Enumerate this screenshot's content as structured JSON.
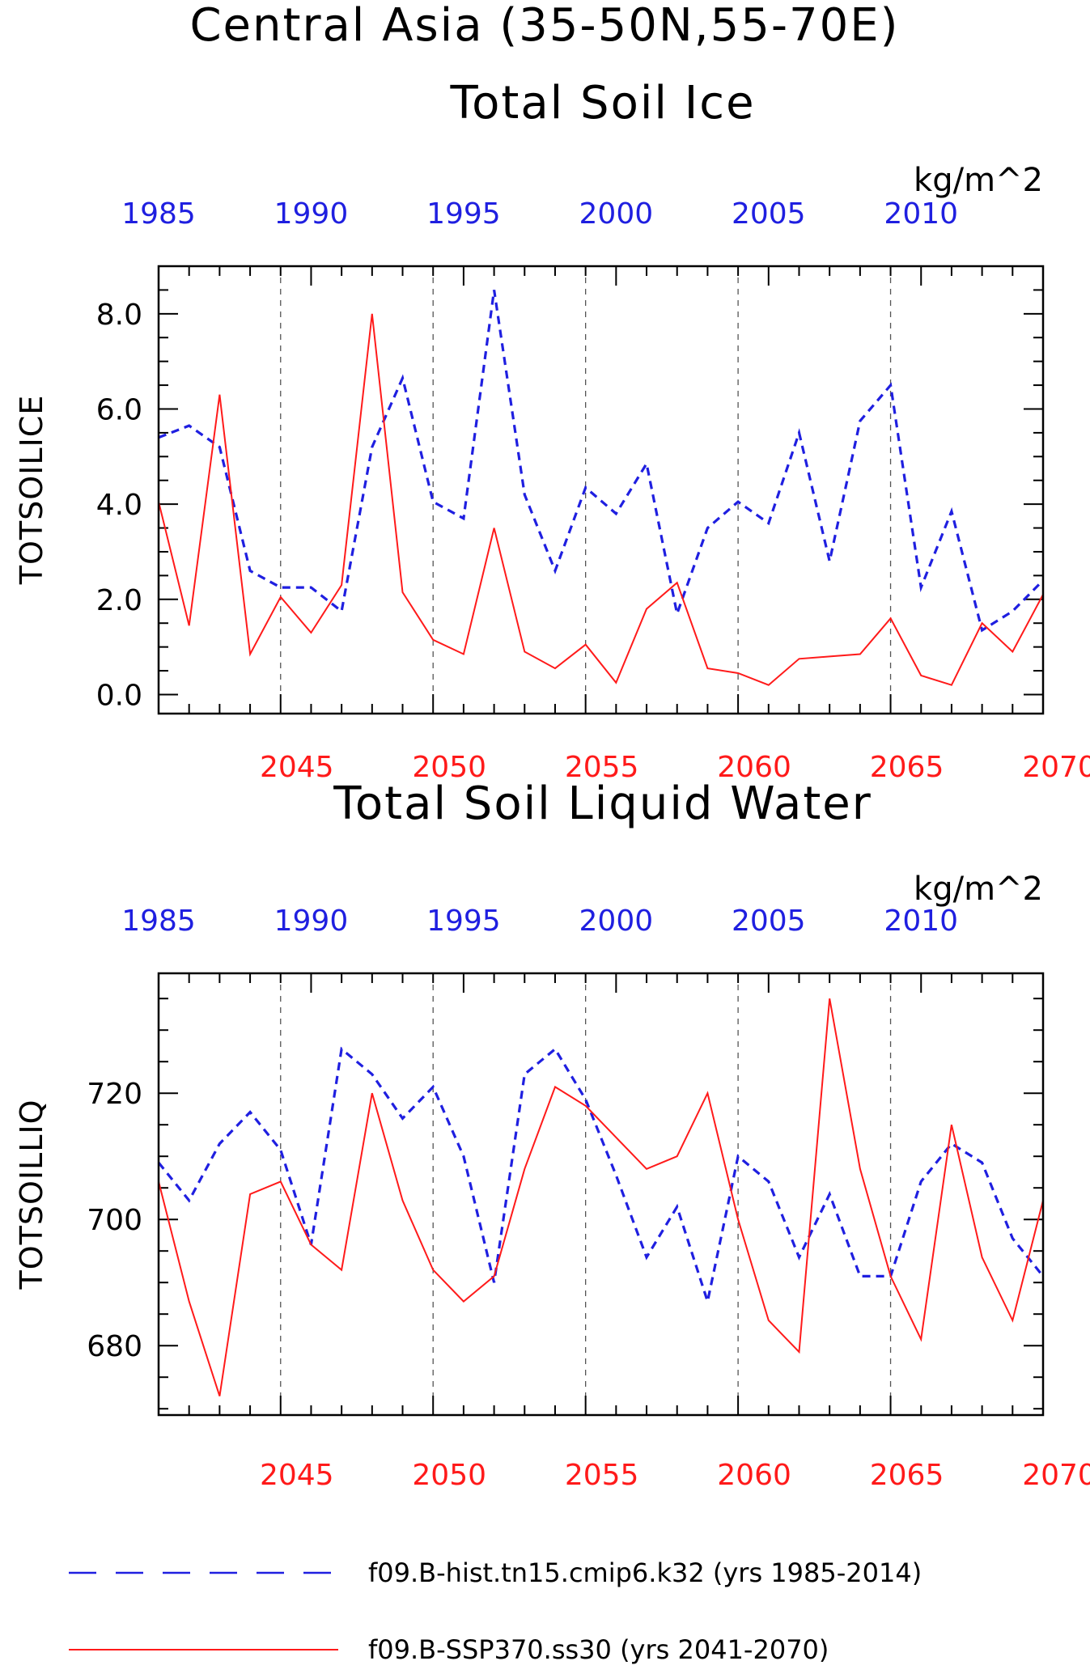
{
  "colors": {
    "hist": "#1f1fe0",
    "ssp": "#ff1a1a",
    "axis": "#000000"
  },
  "titles": {
    "main_line1": "Central Asia (35-50N,55-70E)",
    "main_line2": "Total Soil Ice",
    "panel2": "Total Soil Liquid Water"
  },
  "legend": {
    "hist_label": "f09.B-hist.tn15.cmip6.k32 (yrs 1985-2014)",
    "ssp_label": "f09.B-SSP370.ss30 (yrs 2041-2070)"
  },
  "chart_data": [
    {
      "type": "line",
      "ylabel": "TOTSOILICE",
      "units": "kg/m^2",
      "ylim": [
        -0.4,
        9.0
      ],
      "yticks": [
        "0.0",
        "2.0",
        "4.0",
        "6.0",
        "8.0"
      ],
      "bottom_axis": {
        "range": [
          2041,
          2070
        ],
        "ticks": [
          "2045",
          "2050",
          "2055",
          "2060",
          "2065",
          "2070"
        ]
      },
      "top_axis": {
        "range": [
          1985,
          2014
        ],
        "ticks": [
          "1985",
          "1990",
          "1995",
          "2000",
          "2005",
          "2010"
        ]
      },
      "grid": "dashed vertical lines at 2045, 2050, 2055, 2060, 2065",
      "series": [
        {
          "name": "f09.B-hist.tn15.cmip6.k32 (yrs 1985-2014)",
          "style": "dashed",
          "x": [
            1985,
            1986,
            1987,
            1988,
            1989,
            1990,
            1991,
            1992,
            1993,
            1994,
            1995,
            1996,
            1997,
            1998,
            1999,
            2000,
            2001,
            2002,
            2003,
            2004,
            2005,
            2006,
            2007,
            2008,
            2009,
            2010,
            2011,
            2012,
            2013,
            2014
          ],
          "values": [
            5.4,
            5.65,
            5.2,
            2.6,
            2.25,
            2.25,
            1.75,
            5.2,
            6.65,
            4.05,
            3.7,
            8.5,
            4.2,
            2.6,
            4.35,
            3.8,
            4.85,
            1.7,
            3.5,
            4.05,
            3.6,
            5.5,
            2.8,
            5.75,
            6.5,
            2.25,
            3.85,
            1.35,
            1.75,
            2.4
          ]
        },
        {
          "name": "f09.B-SSP370.ss30 (yrs 2041-2070)",
          "style": "solid",
          "x": [
            2041,
            2042,
            2043,
            2044,
            2045,
            2046,
            2047,
            2048,
            2049,
            2050,
            2051,
            2052,
            2053,
            2054,
            2055,
            2056,
            2057,
            2058,
            2059,
            2060,
            2061,
            2062,
            2063,
            2064,
            2065,
            2066,
            2067,
            2068,
            2069,
            2070
          ],
          "values": [
            4.05,
            1.45,
            6.3,
            0.85,
            2.05,
            1.3,
            2.3,
            8.0,
            2.15,
            1.15,
            0.85,
            3.5,
            0.9,
            0.55,
            1.05,
            0.25,
            1.8,
            2.35,
            0.55,
            0.45,
            0.2,
            0.75,
            0.8,
            0.85,
            1.6,
            0.4,
            0.2,
            1.5,
            0.9,
            2.1
          ]
        }
      ]
    },
    {
      "type": "line",
      "ylabel": "TOTSOILLIQ",
      "units": "kg/m^2",
      "ylim": [
        669,
        739
      ],
      "yticks": [
        "680",
        "700",
        "720"
      ],
      "bottom_axis": {
        "range": [
          2041,
          2070
        ],
        "ticks": [
          "2045",
          "2050",
          "2055",
          "2060",
          "2065",
          "2070"
        ]
      },
      "top_axis": {
        "range": [
          1985,
          2014
        ],
        "ticks": [
          "1985",
          "1990",
          "1995",
          "2000",
          "2005",
          "2010"
        ]
      },
      "grid": "dashed vertical lines at 2045, 2050, 2055, 2060, 2065",
      "series": [
        {
          "name": "f09.B-hist.tn15.cmip6.k32 (yrs 1985-2014)",
          "style": "dashed",
          "x": [
            1985,
            1986,
            1987,
            1988,
            1989,
            1990,
            1991,
            1992,
            1993,
            1994,
            1995,
            1996,
            1997,
            1998,
            1999,
            2000,
            2001,
            2002,
            2003,
            2004,
            2005,
            2006,
            2007,
            2008,
            2009,
            2010,
            2011,
            2012,
            2013,
            2014
          ],
          "values": [
            709,
            703,
            712,
            717,
            711,
            696,
            727,
            723,
            716,
            721,
            710,
            690,
            723,
            727,
            719,
            707,
            694,
            702,
            687,
            710,
            706,
            694,
            704,
            691,
            691,
            706,
            712,
            709,
            697,
            691
          ]
        },
        {
          "name": "f09.B-SSP370.ss30 (yrs 2041-2070)",
          "style": "solid",
          "x": [
            2041,
            2042,
            2043,
            2044,
            2045,
            2046,
            2047,
            2048,
            2049,
            2050,
            2051,
            2052,
            2053,
            2054,
            2055,
            2056,
            2057,
            2058,
            2059,
            2060,
            2061,
            2062,
            2063,
            2064,
            2065,
            2066,
            2067,
            2068,
            2069,
            2070
          ],
          "values": [
            706,
            687,
            672,
            704,
            706,
            696,
            692,
            720,
            703,
            692,
            687,
            691,
            708,
            721,
            718,
            713,
            708,
            710,
            720,
            700,
            684,
            679,
            735,
            708,
            691,
            681,
            715,
            694,
            684,
            703
          ]
        }
      ]
    }
  ]
}
